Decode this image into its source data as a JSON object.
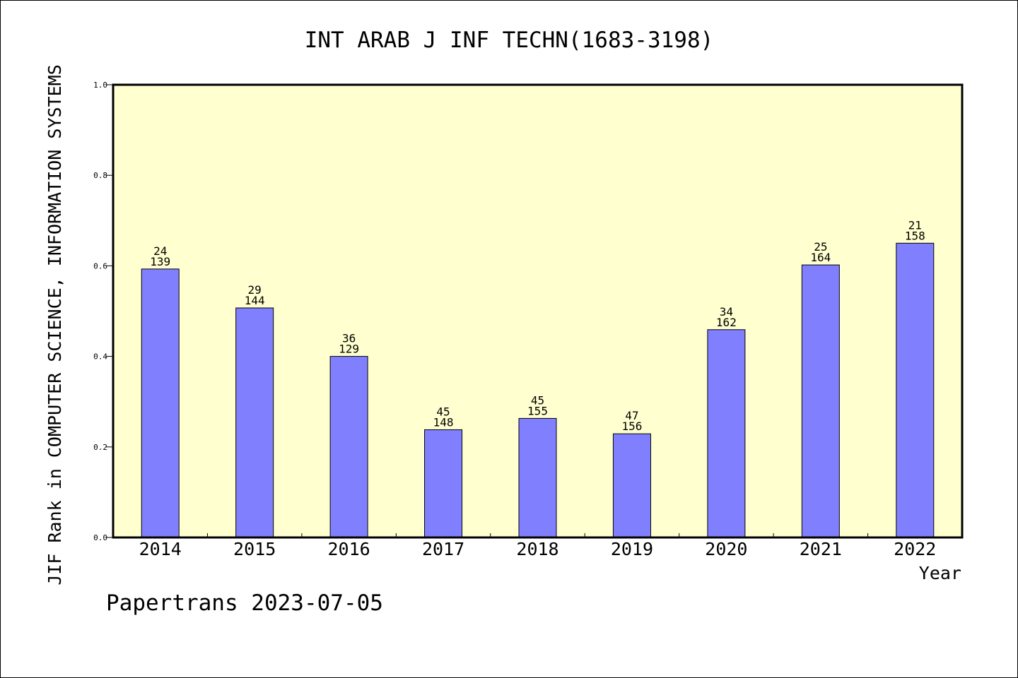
{
  "chart_data": {
    "type": "bar",
    "title": "INT ARAB J INF TECHN(1683-3198)",
    "xlabel": "Year",
    "ylabel": "JIF Rank in COMPUTER SCIENCE, INFORMATION SYSTEMS",
    "ylim": [
      0,
      1.0
    ],
    "yticks": [
      "0.0",
      "0.2",
      "0.4",
      "0.6",
      "0.8",
      "1.0"
    ],
    "categories": [
      "2014",
      "2015",
      "2016",
      "2017",
      "2018",
      "2019",
      "2020",
      "2021",
      "2022"
    ],
    "values": [
      0.593,
      0.507,
      0.4,
      0.238,
      0.263,
      0.229,
      0.459,
      0.602,
      0.65
    ],
    "labels_top": [
      "24",
      "29",
      "36",
      "45",
      "45",
      "47",
      "34",
      "25",
      "21"
    ],
    "labels_bottom": [
      "139",
      "144",
      "129",
      "148",
      "155",
      "156",
      "162",
      "164",
      "158"
    ],
    "grid": false,
    "colors": {
      "bar": "#8080ff",
      "plot_background": "#ffffd0"
    }
  },
  "footer": "Papertrans 2023-07-05"
}
